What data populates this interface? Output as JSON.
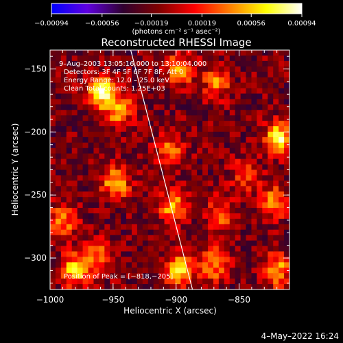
{
  "chart_data": {
    "type": "heatmap",
    "title": "Reconstructed RHESSI Image",
    "xlabel": "Heliocentric X (arcsec)",
    "ylabel": "Heliocentric Y (arcsec)",
    "xlim": [
      -1000,
      -810
    ],
    "ylim": [
      -325,
      -135
    ],
    "x_ticks": [
      -1000,
      -950,
      -900,
      -850
    ],
    "x_tick_labels": [
      "−1000",
      "−950",
      "−900",
      "−850"
    ],
    "y_ticks": [
      -150,
      -200,
      -250,
      -300
    ],
    "y_tick_labels": [
      "−150",
      "−200",
      "−250",
      "−300"
    ],
    "colorbar": {
      "range": [
        -0.00094,
        0.00094
      ],
      "ticks": [
        -0.00094,
        -0.00056,
        -0.00019,
        0.00019,
        0.00056,
        0.00094
      ],
      "tick_labels": [
        "−0.00094",
        "−0.00056",
        "−0.00019",
        "0.00019",
        "0.00056",
        "0.00094"
      ],
      "unit_label": "(photons cm⁻² s⁻¹ asec⁻²)",
      "colormap": [
        "#0000ff",
        "#6000e0",
        "#300030",
        "#800000",
        "#ff0000",
        "#ff8000",
        "#ffff00",
        "#ffffff"
      ]
    },
    "annotations": [
      "9–Aug–2003 13:05:16.000 to 13:10:04.000",
      "Detectors: 3F 4F 5F 6F 7F 8F, Att 0",
      "Energy Range: 12.0 – 25.0 keV",
      "Clean     Total counts: 1.25E+03"
    ],
    "peak_label": "Position of Peak = [−818,−205]",
    "peak": [
      -818,
      -205
    ],
    "limb_line": [
      [
        -936,
        -135
      ],
      [
        -887,
        -325
      ]
    ],
    "sources": [
      {
        "x": -960,
        "y": -168,
        "intensity": 0.00094
      },
      {
        "x": -945,
        "y": -182,
        "intensity": 0.0007
      },
      {
        "x": -948,
        "y": -240,
        "intensity": 0.00075
      },
      {
        "x": -990,
        "y": -270,
        "intensity": 0.0006
      },
      {
        "x": -980,
        "y": -310,
        "intensity": 0.0008
      },
      {
        "x": -962,
        "y": -300,
        "intensity": 0.00055
      },
      {
        "x": -897,
        "y": -150,
        "intensity": 0.0007
      },
      {
        "x": -905,
        "y": -215,
        "intensity": 0.0006
      },
      {
        "x": -902,
        "y": -260,
        "intensity": 0.0007
      },
      {
        "x": -898,
        "y": -310,
        "intensity": 0.00085
      },
      {
        "x": -868,
        "y": -160,
        "intensity": 0.00055
      },
      {
        "x": -870,
        "y": -305,
        "intensity": 0.00065
      },
      {
        "x": -865,
        "y": -265,
        "intensity": 0.0005
      },
      {
        "x": -818,
        "y": -205,
        "intensity": 0.00094
      },
      {
        "x": -822,
        "y": -255,
        "intensity": 0.0006
      },
      {
        "x": -820,
        "y": -310,
        "intensity": 0.0007
      },
      {
        "x": -845,
        "y": -235,
        "intensity": 0.00045
      }
    ],
    "background_level": -0.0002
  },
  "footer": {
    "date": "4–May–2022 16:24"
  }
}
